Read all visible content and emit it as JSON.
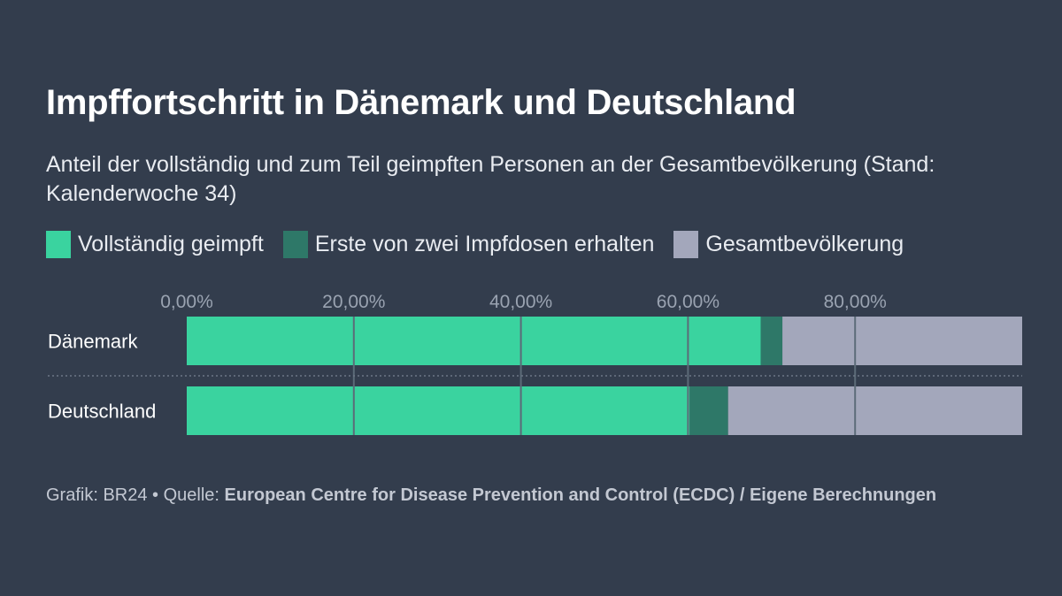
{
  "title": "Impffortschritt in Dänemark und Deutschland",
  "subtitle": "Anteil der vollständig und zum Teil geimpften Personen an der Gesamtbevölkerung (Stand: Kalenderwoche 34)",
  "legend": [
    {
      "label": "Vollständig geimpft",
      "color": "#3ad39f"
    },
    {
      "label": "Erste von zwei Impfdosen erhalten",
      "color": "#2e7868"
    },
    {
      "label": "Gesamtbevölkerung",
      "color": "#a3a7bb"
    }
  ],
  "footer": {
    "prefix": "Grafik: BR24 • Quelle: ",
    "source": "European Centre for Disease Prevention and Control (ECDC) / Eigene Berechnungen"
  },
  "chart_data": {
    "type": "bar",
    "orientation": "horizontal",
    "stacked": true,
    "categories": [
      "Dänemark",
      "Deutschland"
    ],
    "series": [
      {
        "name": "Vollständig geimpft",
        "values": [
          68.7,
          60.2
        ],
        "color": "#3ad39f"
      },
      {
        "name": "Erste von zwei Impfdosen erhalten",
        "values": [
          2.6,
          4.6
        ],
        "color": "#2e7868"
      },
      {
        "name": "Gesamtbevölkerung",
        "values": [
          28.7,
          35.2
        ],
        "color": "#a3a7bb"
      }
    ],
    "xticks": [
      0,
      20,
      40,
      60,
      80
    ],
    "xtick_labels": [
      "0,00%",
      "20,00%",
      "40,00%",
      "60,00%",
      "80,00%"
    ],
    "xlim": [
      0,
      100
    ],
    "grid": true,
    "legend_position": "top"
  }
}
